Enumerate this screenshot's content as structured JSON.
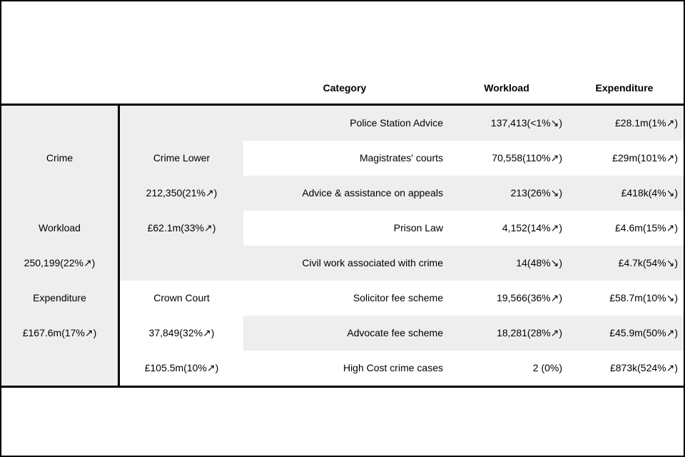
{
  "colors": {
    "stripe": "#eeeeee",
    "border": "#000000",
    "text": "#000000",
    "background": "#ffffff"
  },
  "chart_data": {
    "type": "table",
    "columns": [
      "Category",
      "Workload",
      "Expenditure"
    ],
    "groups": [
      {
        "name": "Crime",
        "workload_label": "Workload",
        "workload": "250,199(22%↗)",
        "expenditure_label": "Expenditure",
        "expenditure": "£167.6m(17%↗)",
        "subgroups": [
          {
            "name": "Crime Lower",
            "workload": "212,350(21%↗)",
            "expenditure": "£62.1m(33%↗)",
            "rows": [
              {
                "category": "Police Station Advice",
                "workload": "137,413(<1%↘)",
                "expenditure": "£28.1m(1%↗)"
              },
              {
                "category": "Magistrates' courts",
                "workload": "70,558(110%↗)",
                "expenditure": "£29m(101%↗)"
              },
              {
                "category": "Advice & assistance on appeals",
                "workload": "213(26%↘)",
                "expenditure": "£418k(4%↘)"
              },
              {
                "category": "Prison Law",
                "workload": "4,152(14%↗)",
                "expenditure": "£4.6m(15%↗)"
              },
              {
                "category": "Civil work associated with crime",
                "workload": "14(48%↘)",
                "expenditure": "£4.7k(54%↘)"
              }
            ]
          },
          {
            "name": "Crown Court",
            "workload": "37,849(32%↗)",
            "expenditure": "£105.5m(10%↗)",
            "rows": [
              {
                "category": "Solicitor fee scheme",
                "workload": "19,566(36%↗)",
                "expenditure": "£58.7m(10%↘)"
              },
              {
                "category": "Advocate fee scheme",
                "workload": "18,281(28%↗)",
                "expenditure": "£45.9m(50%↗)"
              },
              {
                "category": "High Cost crime cases",
                "workload": "2 (0%)",
                "expenditure": "£873k(524%↗)"
              }
            ]
          }
        ]
      }
    ]
  }
}
